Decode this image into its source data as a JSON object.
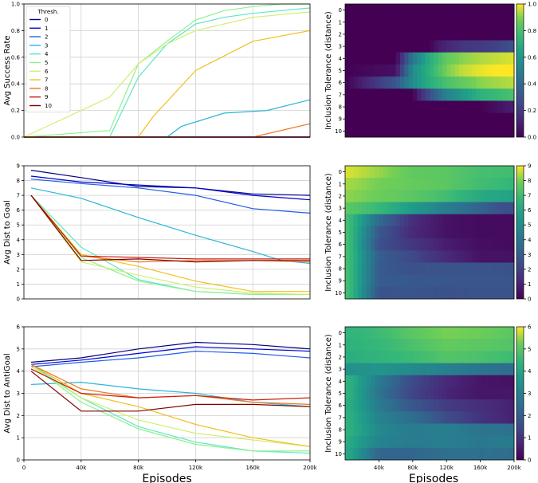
{
  "line_charts": [
    {
      "id": "success",
      "ylabel": "Avg Success Rate",
      "ylim": [
        0,
        1
      ],
      "yticks": [
        "0.0",
        "0.2",
        "0.4",
        "0.6",
        "0.8",
        "1.0"
      ],
      "legend_title": "Thresh.",
      "xticks": [],
      "xlabel": ""
    },
    {
      "id": "dist",
      "ylabel": "Avg Dist to Goal",
      "ylim": [
        0,
        9
      ],
      "yticks": [
        "0",
        "1",
        "2",
        "3",
        "4",
        "5",
        "6",
        "7",
        "8",
        "9"
      ],
      "xticks": [],
      "xlabel": ""
    },
    {
      "id": "anti",
      "ylabel": "Avg Dist to AntiGoal",
      "ylim": [
        0,
        6
      ],
      "yticks": [
        "0",
        "1",
        "2",
        "3",
        "4",
        "5",
        "6"
      ],
      "xticks": [
        "0",
        "40k",
        "80k",
        "120k",
        "160k",
        "200k"
      ],
      "xlabel": "Episodes"
    }
  ],
  "heatmaps": [
    {
      "id": "success",
      "ylabel": "Inclusion Tolerance (distance)",
      "cbar_ticks": [
        "0.0",
        "0.2",
        "0.4",
        "0.6",
        "0.8",
        "1.0"
      ],
      "vmin": 0,
      "vmax": 1,
      "xticks": [],
      "xlabel": ""
    },
    {
      "id": "dist",
      "ylabel": "Inclusion Tolerance (distance)",
      "cbar_ticks": [
        "0",
        "1",
        "2",
        "3",
        "4",
        "5",
        "6",
        "7",
        "8",
        "9"
      ],
      "vmin": 0,
      "vmax": 9,
      "xticks": [],
      "xlabel": ""
    },
    {
      "id": "anti",
      "ylabel": "Inclusion Tolerance (distance)",
      "cbar_ticks": [
        "0",
        "1",
        "2",
        "3",
        "4",
        "5",
        "6"
      ],
      "vmin": 0,
      "vmax": 6,
      "xticks": [
        "40k",
        "80k",
        "120k",
        "160k",
        "200k"
      ],
      "xlabel": "Episodes"
    }
  ],
  "heat_rows": [
    "0",
    "1",
    "2",
    "3",
    "4",
    "5",
    "6",
    "7",
    "8",
    "9",
    "10"
  ],
  "chart_data": [
    {
      "type": "line",
      "id": "success",
      "ylabel": "Avg Success Rate",
      "xlim": [
        0,
        200000
      ],
      "ylim": [
        0,
        1
      ],
      "legend_title": "Thresh.",
      "legend_position": "top-left",
      "grid": true,
      "series": [
        {
          "name": "0",
          "color": "#000080",
          "x": [
            0,
            200000
          ],
          "y": [
            0,
            0
          ]
        },
        {
          "name": "1",
          "color": "#0000d0",
          "x": [
            0,
            200000
          ],
          "y": [
            0,
            0
          ]
        },
        {
          "name": "2",
          "color": "#1e5ee8",
          "x": [
            0,
            200000
          ],
          "y": [
            0,
            0
          ]
        },
        {
          "name": "3",
          "color": "#29b6d8",
          "x": [
            0,
            100000,
            110000,
            140000,
            170000,
            200000
          ],
          "y": [
            0,
            0,
            0.08,
            0.18,
            0.2,
            0.28
          ]
        },
        {
          "name": "4",
          "color": "#5ee8c4",
          "x": [
            0,
            60000,
            80000,
            100000,
            120000,
            140000,
            160000,
            180000,
            200000
          ],
          "y": [
            0,
            0,
            0.45,
            0.7,
            0.85,
            0.9,
            0.93,
            0.95,
            0.97
          ]
        },
        {
          "name": "5",
          "color": "#90f090",
          "x": [
            0,
            60000,
            80000,
            100000,
            120000,
            140000,
            160000,
            180000,
            200000
          ],
          "y": [
            0,
            0.05,
            0.55,
            0.72,
            0.88,
            0.95,
            0.98,
            1.0,
            1.0
          ]
        },
        {
          "name": "6",
          "color": "#d0f070",
          "x": [
            0,
            60000,
            80000,
            100000,
            120000,
            160000,
            200000
          ],
          "y": [
            0,
            0.3,
            0.55,
            0.7,
            0.8,
            0.9,
            0.94
          ]
        },
        {
          "name": "7",
          "color": "#f0c020",
          "x": [
            0,
            80000,
            90000,
            120000,
            160000,
            200000
          ],
          "y": [
            0,
            0,
            0.15,
            0.5,
            0.72,
            0.8
          ]
        },
        {
          "name": "8",
          "color": "#f07820",
          "x": [
            0,
            160000,
            200000
          ],
          "y": [
            0,
            0,
            0.1
          ]
        },
        {
          "name": "9",
          "color": "#c82010",
          "x": [
            0,
            200000
          ],
          "y": [
            0,
            0
          ]
        },
        {
          "name": "10",
          "color": "#800000",
          "x": [
            0,
            200000
          ],
          "y": [
            0,
            0
          ]
        }
      ]
    },
    {
      "type": "line",
      "id": "dist",
      "ylabel": "Avg Dist to Goal",
      "xlim": [
        0,
        200000
      ],
      "ylim": [
        0,
        9
      ],
      "grid": true,
      "series": [
        {
          "name": "0",
          "color": "#000080",
          "x": [
            5000,
            40000,
            80000,
            120000,
            160000,
            200000
          ],
          "y": [
            8.7,
            8.2,
            7.6,
            7.5,
            7.1,
            7.0
          ]
        },
        {
          "name": "1",
          "color": "#0000d0",
          "x": [
            5000,
            40000,
            80000,
            120000,
            160000,
            200000
          ],
          "y": [
            8.3,
            7.9,
            7.7,
            7.5,
            7.0,
            6.7
          ]
        },
        {
          "name": "2",
          "color": "#1e5ee8",
          "x": [
            5000,
            40000,
            80000,
            120000,
            160000,
            200000
          ],
          "y": [
            8.1,
            7.8,
            7.5,
            7.0,
            6.1,
            5.8
          ]
        },
        {
          "name": "3",
          "color": "#29b6d8",
          "x": [
            5000,
            40000,
            80000,
            120000,
            160000,
            180000,
            200000
          ],
          "y": [
            7.5,
            6.8,
            5.5,
            4.3,
            3.2,
            2.6,
            2.4
          ]
        },
        {
          "name": "4",
          "color": "#5ee8c4",
          "x": [
            5000,
            40000,
            80000,
            120000,
            160000,
            200000
          ],
          "y": [
            7.0,
            3.5,
            1.3,
            0.5,
            0.3,
            0.3
          ]
        },
        {
          "name": "5",
          "color": "#90f090",
          "x": [
            5000,
            40000,
            80000,
            120000,
            160000,
            200000
          ],
          "y": [
            7.0,
            2.8,
            1.2,
            0.5,
            0.3,
            0.3
          ]
        },
        {
          "name": "6",
          "color": "#d0f070",
          "x": [
            5000,
            40000,
            80000,
            120000,
            160000,
            200000
          ],
          "y": [
            7.0,
            2.5,
            1.6,
            0.8,
            0.4,
            0.3
          ]
        },
        {
          "name": "7",
          "color": "#f0c020",
          "x": [
            5000,
            40000,
            80000,
            120000,
            160000,
            200000
          ],
          "y": [
            7.0,
            3.0,
            2.2,
            1.2,
            0.5,
            0.5
          ]
        },
        {
          "name": "8",
          "color": "#f07820",
          "x": [
            5000,
            40000,
            80000,
            120000,
            160000,
            200000
          ],
          "y": [
            7.0,
            2.9,
            2.5,
            2.6,
            2.6,
            2.5
          ]
        },
        {
          "name": "9",
          "color": "#c82010",
          "x": [
            5000,
            40000,
            80000,
            120000,
            160000,
            200000
          ],
          "y": [
            7.0,
            2.9,
            2.8,
            2.7,
            2.7,
            2.7
          ]
        },
        {
          "name": "10",
          "color": "#800000",
          "x": [
            5000,
            40000,
            80000,
            120000,
            160000,
            200000
          ],
          "y": [
            7.0,
            2.6,
            2.7,
            2.5,
            2.6,
            2.6
          ]
        }
      ]
    },
    {
      "type": "line",
      "id": "anti",
      "ylabel": "Avg Dist to AntiGoal",
      "xlabel": "Episodes",
      "xlim": [
        0,
        200000
      ],
      "ylim": [
        0,
        6
      ],
      "grid": true,
      "series": [
        {
          "name": "0",
          "color": "#000080",
          "x": [
            5000,
            40000,
            80000,
            120000,
            160000,
            200000
          ],
          "y": [
            4.4,
            4.6,
            5.0,
            5.3,
            5.2,
            5.0
          ]
        },
        {
          "name": "1",
          "color": "#0000d0",
          "x": [
            5000,
            40000,
            80000,
            120000,
            160000,
            200000
          ],
          "y": [
            4.3,
            4.5,
            4.8,
            5.1,
            5.0,
            4.9
          ]
        },
        {
          "name": "2",
          "color": "#1e5ee8",
          "x": [
            5000,
            40000,
            80000,
            120000,
            160000,
            200000
          ],
          "y": [
            4.2,
            4.4,
            4.6,
            4.9,
            4.8,
            4.6
          ]
        },
        {
          "name": "3",
          "color": "#29b6d8",
          "x": [
            5000,
            40000,
            80000,
            120000,
            160000,
            200000
          ],
          "y": [
            3.4,
            3.5,
            3.2,
            3.0,
            2.6,
            2.4
          ]
        },
        {
          "name": "4",
          "color": "#5ee8c4",
          "x": [
            5000,
            40000,
            80000,
            120000,
            160000,
            200000
          ],
          "y": [
            4.3,
            2.8,
            1.5,
            0.8,
            0.4,
            0.3
          ]
        },
        {
          "name": "5",
          "color": "#90f090",
          "x": [
            5000,
            40000,
            80000,
            120000,
            160000,
            200000
          ],
          "y": [
            4.3,
            2.6,
            1.4,
            0.7,
            0.4,
            0.4
          ]
        },
        {
          "name": "6",
          "color": "#d0f070",
          "x": [
            5000,
            40000,
            80000,
            120000,
            160000,
            200000
          ],
          "y": [
            4.2,
            2.8,
            1.8,
            1.2,
            0.9,
            0.6
          ]
        },
        {
          "name": "7",
          "color": "#f0c020",
          "x": [
            5000,
            40000,
            80000,
            120000,
            160000,
            200000
          ],
          "y": [
            4.3,
            3.0,
            2.4,
            1.6,
            1.0,
            0.6
          ]
        },
        {
          "name": "8",
          "color": "#f07820",
          "x": [
            5000,
            40000,
            80000,
            120000,
            160000,
            200000
          ],
          "y": [
            4.3,
            3.2,
            2.8,
            2.9,
            2.6,
            2.5
          ]
        },
        {
          "name": "9",
          "color": "#c82010",
          "x": [
            5000,
            40000,
            80000,
            120000,
            160000,
            200000
          ],
          "y": [
            4.1,
            3.0,
            2.8,
            2.9,
            2.7,
            2.8
          ]
        },
        {
          "name": "10",
          "color": "#800000",
          "x": [
            5000,
            40000,
            80000,
            120000,
            160000,
            200000
          ],
          "y": [
            4.0,
            2.2,
            2.2,
            2.5,
            2.5,
            2.4
          ]
        }
      ]
    },
    {
      "type": "heatmap",
      "id": "success",
      "ylabel": "Inclusion Tolerance (distance)",
      "colormap": "viridis",
      "vmin": 0,
      "vmax": 1,
      "rows": [
        "0",
        "1",
        "2",
        "3",
        "4",
        "5",
        "6",
        "7",
        "8",
        "9",
        "10"
      ]
    },
    {
      "type": "heatmap",
      "id": "dist",
      "ylabel": "Inclusion Tolerance (distance)",
      "colormap": "viridis",
      "vmin": 0,
      "vmax": 9,
      "rows": [
        "0",
        "1",
        "2",
        "3",
        "4",
        "5",
        "6",
        "7",
        "8",
        "9",
        "10"
      ]
    },
    {
      "type": "heatmap",
      "id": "anti",
      "ylabel": "Inclusion Tolerance (distance)",
      "xlabel": "Episodes",
      "colormap": "viridis",
      "vmin": 0,
      "vmax": 6,
      "rows": [
        "0",
        "1",
        "2",
        "3",
        "4",
        "5",
        "6",
        "7",
        "8",
        "9",
        "10"
      ]
    }
  ]
}
